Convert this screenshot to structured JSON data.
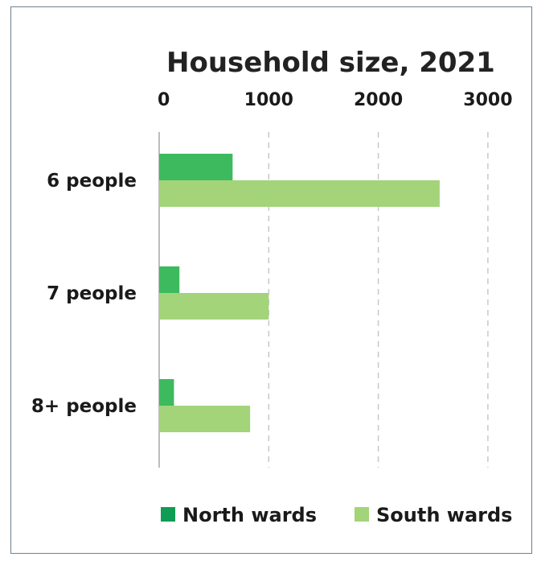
{
  "chart_data": {
    "type": "bar",
    "orientation": "horizontal",
    "title": "Household size, 2021",
    "categories": [
      "6 people",
      "7 people",
      "8+ people"
    ],
    "series": [
      {
        "name": "North wards",
        "values": [
          670,
          185,
          135
        ],
        "color": "#3dba5e"
      },
      {
        "name": "South wards",
        "values": [
          2560,
          1000,
          830
        ],
        "color": "#a3d47a"
      }
    ],
    "xlim": [
      0,
      3000
    ],
    "xticks": [
      "0",
      "1000",
      "2000",
      "3000"
    ],
    "x_axis_position": "top",
    "grid": true,
    "legend_position": "bottom",
    "legend_marker_colors": [
      "#0f9c55",
      "#a3d47a"
    ]
  }
}
